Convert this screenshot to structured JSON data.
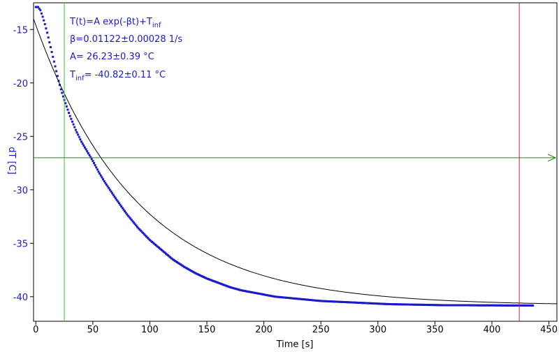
{
  "colors": {
    "data_series": "#1a1acc",
    "fit_curve": "#000000",
    "green_cursor": "#33cc33",
    "green_arrow": "#1a8a1a",
    "red_cursor": "#cc2222",
    "axis": "#000000",
    "y_tick_text": "#1a1acc",
    "x_tick_text": "#000000"
  },
  "fit_box": {
    "line1_main": "T(t)=A exp(-βt)+T",
    "line1_sub": "inf",
    "line2": "β=0.01122±0.00028 1/s",
    "line3": "A= 26.23±0.39 °C",
    "line4_main": "T",
    "line4_sub": "inf",
    "line4_rest": "= -40.82±0.11 °C"
  },
  "chart_data": {
    "type": "scatter",
    "xlabel": "Time [s]",
    "ylabel": "dT [C]",
    "xlim": [
      -2,
      457
    ],
    "ylim": [
      -42.3,
      -12.5
    ],
    "x_ticks": [
      0,
      50,
      100,
      150,
      200,
      250,
      300,
      350,
      400,
      450
    ],
    "y_ticks": [
      -15,
      -20,
      -25,
      -30,
      -35,
      -40
    ],
    "fit": {
      "model": "T(t)=A exp(-βt)+T_inf",
      "A": 26.23,
      "beta": 0.01122,
      "T_inf": -40.82,
      "x_range": [
        -2,
        457
      ]
    },
    "series": [
      {
        "x": [
          0,
          2,
          4,
          6,
          8,
          10,
          12,
          14,
          16,
          18,
          20,
          22,
          25,
          30,
          35,
          40,
          45,
          50,
          55,
          60,
          70,
          80,
          90,
          100,
          110,
          120,
          130,
          140,
          150,
          160,
          170,
          180,
          190,
          200,
          210,
          220,
          230,
          240,
          250,
          260,
          270,
          280,
          290,
          300,
          310,
          320,
          330,
          340,
          350,
          360,
          370,
          380,
          390,
          400,
          410,
          420,
          430,
          436
        ],
        "y": [
          -12.9,
          -12.9,
          -13.2,
          -13.8,
          -14.5,
          -15.3,
          -16.2,
          -17.1,
          -18.0,
          -18.9,
          -19.8,
          -20.6,
          -21.6,
          -23.1,
          -24.4,
          -25.5,
          -26.4,
          -27.3,
          -28.3,
          -29.2,
          -30.8,
          -32.3,
          -33.6,
          -34.7,
          -35.6,
          -36.5,
          -37.2,
          -37.8,
          -38.3,
          -38.7,
          -39.1,
          -39.4,
          -39.6,
          -39.8,
          -40.0,
          -40.1,
          -40.2,
          -40.3,
          -40.4,
          -40.45,
          -40.5,
          -40.55,
          -40.6,
          -40.65,
          -40.7,
          -40.72,
          -40.74,
          -40.76,
          -40.78,
          -40.8,
          -40.8,
          -40.8,
          -40.81,
          -40.81,
          -40.82,
          -40.82,
          -40.82,
          -40.82
        ]
      }
    ],
    "annotations": {
      "green_vertical_x": 25,
      "red_vertical_x": 424,
      "green_horizontal_y": -27.0
    }
  }
}
